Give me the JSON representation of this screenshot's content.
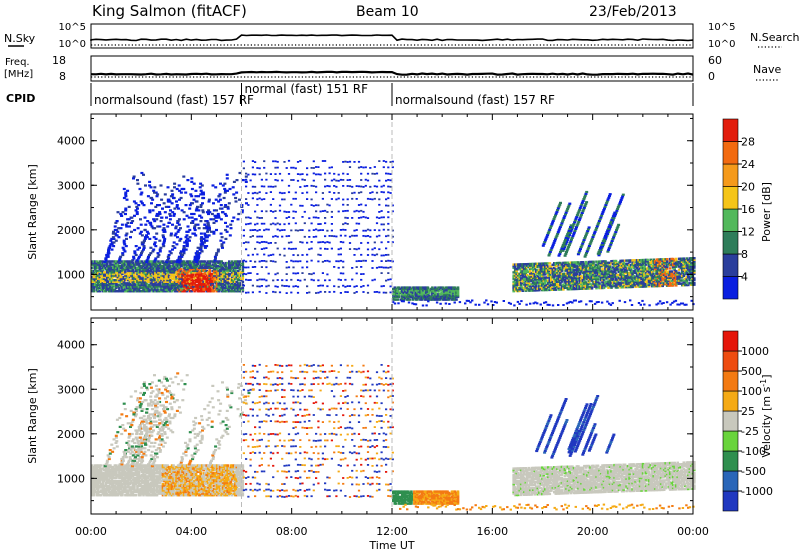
{
  "header": {
    "station": "King Salmon (fitACF)",
    "beam": "Beam 10",
    "date": "23/Feb/2013"
  },
  "noise_panel": {
    "left_label": "N.Sky",
    "right_label": "N.Search",
    "left_ticks": [
      "10^5",
      "10^0"
    ],
    "right_ticks": [
      "10^5",
      "10^0"
    ]
  },
  "freq_panel": {
    "left_label_line1": "Freq.",
    "left_label_line2": "[MHz]",
    "right_label": "Nave",
    "left_ticks": [
      "18",
      "8"
    ],
    "right_ticks": [
      "60",
      "0"
    ]
  },
  "cpid": {
    "label": "CPID",
    "segments": [
      {
        "start_hr": 0,
        "end_hr": 6,
        "text": "normalsound (fast) 157 RF"
      },
      {
        "start_hr": 6,
        "end_hr": 12,
        "text": "normal (fast) 151 RF"
      },
      {
        "start_hr": 12,
        "end_hr": 24,
        "text": "normalsound (fast) 157 RF"
      }
    ]
  },
  "colors": {
    "power_scale": [
      "#0a1fe0",
      "#2a3e9c",
      "#2e7d5a",
      "#52b85b",
      "#f5c518",
      "#f59a1b",
      "#f26a10",
      "#e21d0c"
    ],
    "velocity_scale": [
      "#2038c0",
      "#2a66b8",
      "#2f8f4f",
      "#69d43c",
      "#c8c8bd",
      "#f5aa15",
      "#f37a12",
      "#ee4c10",
      "#e5160a"
    ]
  },
  "chart_data": [
    {
      "type": "heatmap",
      "panel": "power",
      "xlabel": "",
      "ylabel": "Slant Range [km]",
      "xlim_hr": [
        0,
        24
      ],
      "ylim": [
        200,
        4600
      ],
      "yticks": [
        "4000",
        "3000",
        "2000",
        "1000"
      ],
      "colorbar_label": "Power [dB]",
      "colorbar_ticks": [
        "28",
        "24",
        "20",
        "16",
        "12",
        "8",
        "4"
      ]
    },
    {
      "type": "heatmap",
      "panel": "velocity",
      "xlabel": "Time UT",
      "ylabel": "Slant Range [km]",
      "xlim_hr": [
        0,
        24
      ],
      "ylim": [
        200,
        4600
      ],
      "yticks": [
        "4000",
        "3000",
        "2000",
        "1000"
      ],
      "xticks": [
        "00:00",
        "04:00",
        "08:00",
        "12:00",
        "16:00",
        "20:00",
        "00:00"
      ],
      "colorbar_label": "Velocity [m s^-1]",
      "colorbar_ticks": [
        "1000",
        "500",
        "100",
        "25",
        "-25",
        "-100",
        "-500",
        "-1000"
      ]
    }
  ]
}
